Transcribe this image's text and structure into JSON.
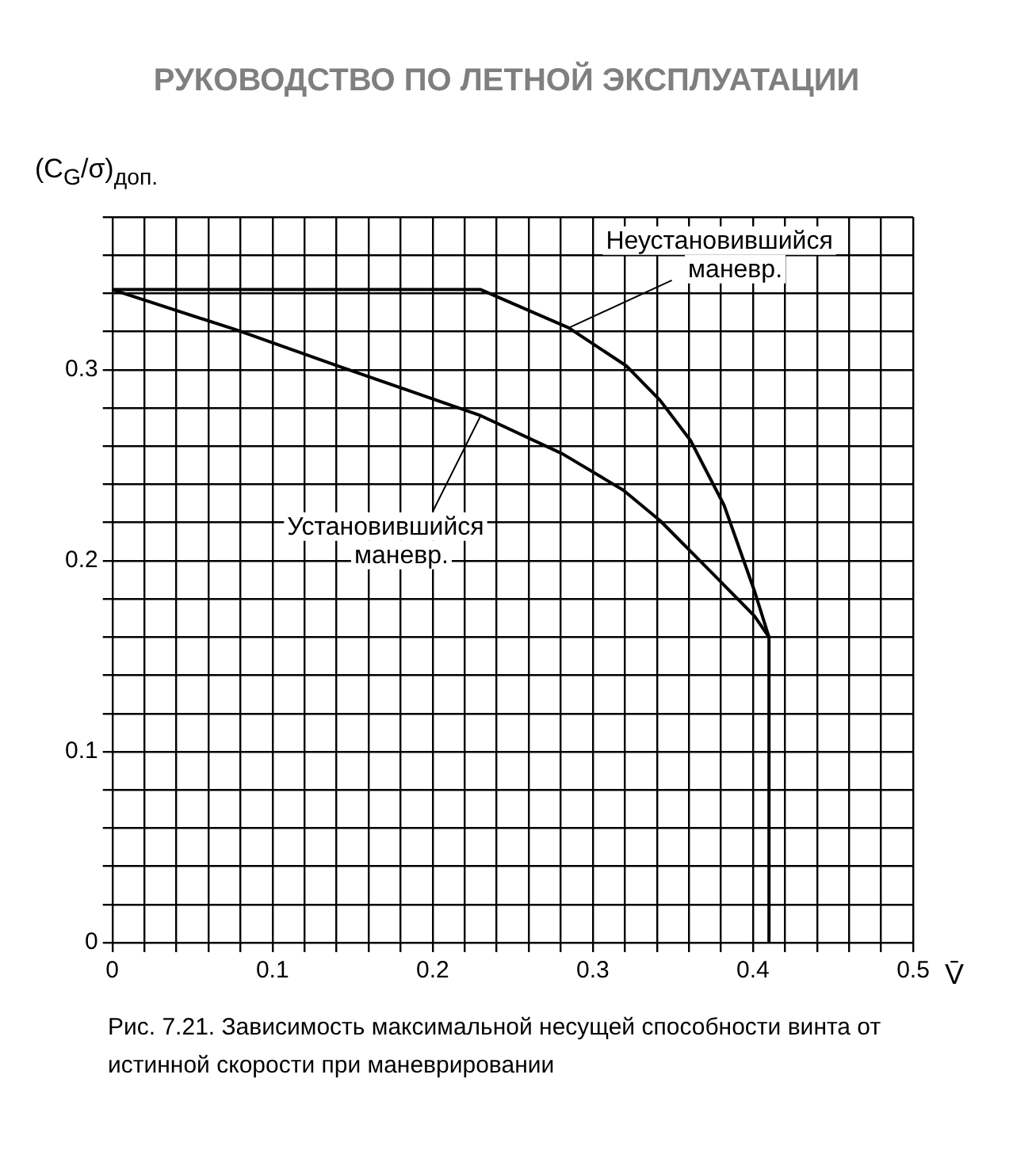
{
  "chart_data": {
    "type": "line",
    "title": "РУКОВОДСТВО ПО ЛЕТНОЙ ЭКСПЛУАТАЦИИ",
    "xlabel": "V̄",
    "ylabel": "(C$_{G}$/σ)$_{доп.}$",
    "xlim": [
      0,
      0.5
    ],
    "ylim": [
      0,
      0.38
    ],
    "xticks": [
      0,
      {
        "value": 0.02,
        "label": null
      },
      {
        "value": 0.04,
        "label": null
      },
      {
        "value": 0.06,
        "label": null
      },
      {
        "value": 0.08,
        "label": null
      },
      0.1,
      {
        "value": 0.12,
        "label": null
      },
      {
        "value": 0.14,
        "label": null
      },
      {
        "value": 0.16,
        "label": null
      },
      {
        "value": 0.18,
        "label": null
      },
      0.2,
      {
        "value": 0.22,
        "label": null
      },
      {
        "value": 0.24,
        "label": null
      },
      {
        "value": 0.26,
        "label": null
      },
      {
        "value": 0.28,
        "label": null
      },
      0.3,
      {
        "value": 0.32,
        "label": null
      },
      {
        "value": 0.34,
        "label": null
      },
      {
        "value": 0.36,
        "label": null
      },
      {
        "value": 0.38,
        "label": null
      },
      0.4,
      {
        "value": 0.42,
        "label": null
      },
      {
        "value": 0.44,
        "label": null
      },
      {
        "value": 0.46,
        "label": null
      },
      {
        "value": 0.48,
        "label": null
      },
      0.5
    ],
    "yticks": [
      0,
      {
        "value": 0.02,
        "label": null
      },
      {
        "value": 0.04,
        "label": null
      },
      {
        "value": 0.06,
        "label": null
      },
      {
        "value": 0.08,
        "label": null
      },
      0.1,
      {
        "value": 0.12,
        "label": null
      },
      {
        "value": 0.14,
        "label": null
      },
      {
        "value": 0.16,
        "label": null
      },
      {
        "value": 0.18,
        "label": null
      },
      0.2,
      {
        "value": 0.22,
        "label": null
      },
      {
        "value": 0.24,
        "label": null
      },
      {
        "value": 0.26,
        "label": null
      },
      {
        "value": 0.28,
        "label": null
      },
      0.3,
      {
        "value": 0.32,
        "label": null
      },
      {
        "value": 0.34,
        "label": null
      },
      {
        "value": 0.36,
        "label": null
      },
      {
        "value": 0.38,
        "label": null
      }
    ],
    "grid": true,
    "marker": "none",
    "line_style": "solid",
    "series": [
      {
        "color": "#000000",
        "x": [
          0,
          0.23,
          0.285,
          0.321,
          0.342,
          0.361,
          0.382,
          0.401,
          0.41,
          0.41
        ],
        "values": [
          0.342,
          0.342,
          0.322,
          0.302,
          0.284,
          0.263,
          0.229,
          0.184,
          0.16,
          0
        ]
      },
      {
        "color": "#000000",
        "x": [
          0,
          0.077,
          0.141,
          0.23,
          0.281,
          0.319,
          0.342,
          0.374,
          0.401,
          0.41
        ],
        "values": [
          0.342,
          0.321,
          0.302,
          0.276,
          0.256,
          0.237,
          0.221,
          0.194,
          0.171,
          0.16
        ]
      }
    ],
    "annotations": [
      {
        "text": "Неустановившийся\nманевр.",
        "x": 0.285,
        "y": 0.322
      },
      {
        "text": "Установившийся\nманевр.",
        "x": 0.23,
        "y": 0.276
      },
      "Рис. 7.21. Зависимость максимальной несущей способности винта от\nистинной скорости при маневрировании"
    ]
  }
}
